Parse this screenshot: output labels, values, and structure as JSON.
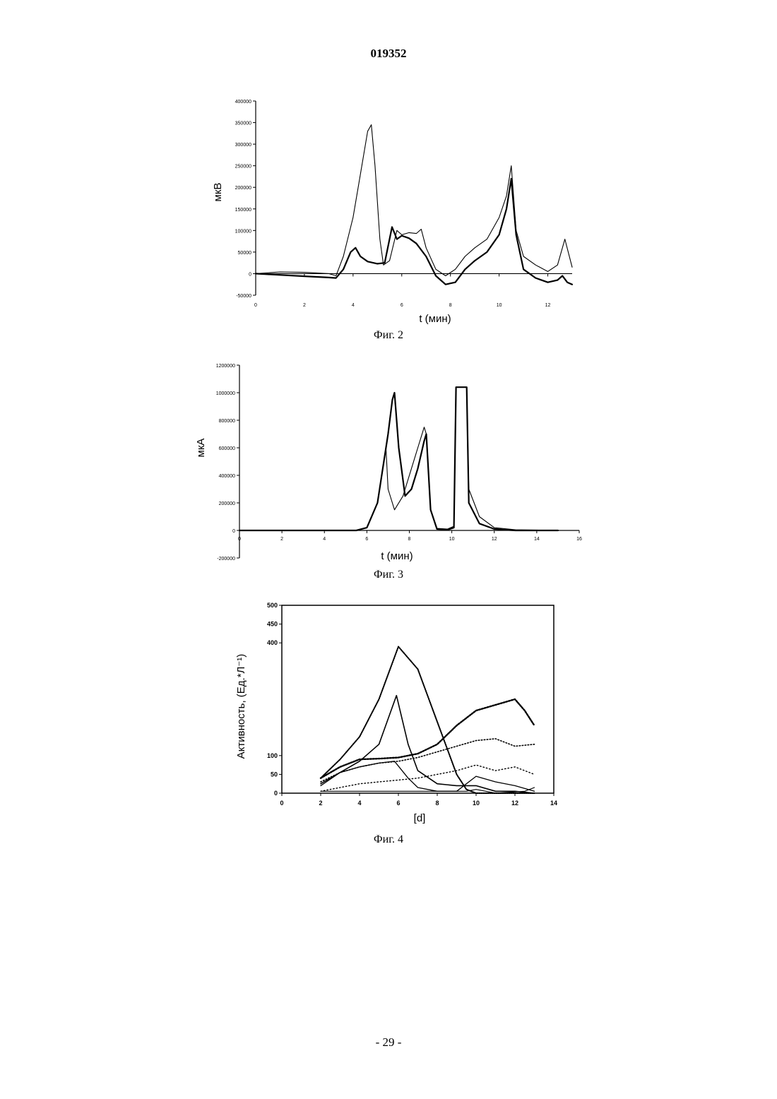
{
  "header": {
    "doc_number": "019352"
  },
  "footer": {
    "page_number": "- 29 -"
  },
  "chart_data": [
    {
      "type": "line",
      "caption": "Фиг. 2",
      "xlabel": "t (мин)",
      "ylabel": "мкВ",
      "xlim": [
        0,
        13
      ],
      "ylim": [
        -50000,
        400000
      ],
      "x_ticks": [
        0,
        2,
        4,
        6,
        8,
        10,
        12
      ],
      "x_tick_labels": [
        "0",
        "2",
        "4",
        "6",
        "8",
        "10",
        "12"
      ],
      "y_ticks": [
        -50000,
        0,
        50000,
        100000,
        150000,
        200000,
        250000,
        300000,
        350000,
        400000
      ],
      "y_tick_labels": [
        "-50000",
        "0",
        "50000",
        "100000",
        "150000",
        "200000",
        "250000",
        "300000",
        "350000",
        "400000"
      ],
      "series": [
        {
          "values": [
            [
              0,
              0
            ],
            [
              1,
              -3000
            ],
            [
              2,
              -6000
            ],
            [
              3,
              -9000
            ],
            [
              3.3,
              -10000
            ],
            [
              3.6,
              10000
            ],
            [
              3.9,
              50000
            ],
            [
              4.1,
              60000
            ],
            [
              4.3,
              40000
            ],
            [
              4.6,
              28000
            ],
            [
              5.0,
              23000
            ],
            [
              5.3,
              25000
            ],
            [
              5.6,
              108000
            ],
            [
              5.8,
              80000
            ],
            [
              6.0,
              88000
            ],
            [
              6.3,
              82000
            ],
            [
              6.6,
              70000
            ],
            [
              7.0,
              40000
            ],
            [
              7.4,
              -5000
            ],
            [
              7.8,
              -25000
            ],
            [
              8.2,
              -20000
            ],
            [
              8.6,
              10000
            ],
            [
              9.0,
              30000
            ],
            [
              9.5,
              50000
            ],
            [
              10.0,
              90000
            ],
            [
              10.3,
              150000
            ],
            [
              10.5,
              220000
            ],
            [
              10.7,
              90000
            ],
            [
              11.0,
              10000
            ],
            [
              11.5,
              -10000
            ],
            [
              12.0,
              -20000
            ],
            [
              12.4,
              -15000
            ],
            [
              12.6,
              -5000
            ],
            [
              12.8,
              -20000
            ],
            [
              13.0,
              -25000
            ]
          ]
        },
        {
          "values": [
            [
              0,
              0
            ],
            [
              1,
              4000
            ],
            [
              2,
              3000
            ],
            [
              3,
              0
            ],
            [
              3.3,
              -5000
            ],
            [
              3.6,
              40000
            ],
            [
              4.0,
              130000
            ],
            [
              4.3,
              230000
            ],
            [
              4.6,
              330000
            ],
            [
              4.75,
              345000
            ],
            [
              4.9,
              250000
            ],
            [
              5.1,
              80000
            ],
            [
              5.25,
              20000
            ],
            [
              5.5,
              30000
            ],
            [
              5.8,
              100000
            ],
            [
              6.0,
              90000
            ],
            [
              6.3,
              95000
            ],
            [
              6.6,
              93000
            ],
            [
              6.8,
              103000
            ],
            [
              7.0,
              60000
            ],
            [
              7.4,
              10000
            ],
            [
              7.8,
              -5000
            ],
            [
              8.2,
              10000
            ],
            [
              8.6,
              40000
            ],
            [
              9.0,
              60000
            ],
            [
              9.5,
              80000
            ],
            [
              10.0,
              130000
            ],
            [
              10.3,
              180000
            ],
            [
              10.5,
              250000
            ],
            [
              10.7,
              100000
            ],
            [
              11.0,
              40000
            ],
            [
              11.5,
              20000
            ],
            [
              12.0,
              5000
            ],
            [
              12.4,
              20000
            ],
            [
              12.7,
              80000
            ],
            [
              13.0,
              15000
            ]
          ]
        }
      ]
    },
    {
      "type": "line",
      "caption": "Фиг. 3",
      "xlabel": "t (мин)",
      "ylabel": "мкА",
      "xlim": [
        0,
        16
      ],
      "ylim": [
        -200000,
        1200000
      ],
      "x_ticks": [
        0,
        2,
        4,
        6,
        8,
        10,
        12,
        14,
        16
      ],
      "x_tick_labels": [
        "0",
        "2",
        "4",
        "6",
        "8",
        "10",
        "12",
        "14",
        "16"
      ],
      "y_ticks": [
        -200000,
        0,
        200000,
        400000,
        600000,
        800000,
        1000000,
        1200000
      ],
      "y_tick_labels": [
        "-200000",
        "0",
        "200000",
        "400000",
        "600000",
        "800000",
        "1000000",
        "1200000"
      ],
      "series": [
        {
          "values": [
            [
              0,
              0
            ],
            [
              5.5,
              0
            ],
            [
              6.0,
              20000
            ],
            [
              6.5,
              200000
            ],
            [
              7.0,
              700000
            ],
            [
              7.2,
              950000
            ],
            [
              7.3,
              1000000
            ],
            [
              7.5,
              600000
            ],
            [
              7.8,
              250000
            ],
            [
              8.1,
              300000
            ],
            [
              8.4,
              450000
            ],
            [
              8.7,
              650000
            ],
            [
              8.8,
              700000
            ],
            [
              9.0,
              150000
            ],
            [
              9.3,
              10000
            ],
            [
              9.8,
              5000
            ],
            [
              10.1,
              20000
            ],
            [
              10.2,
              1040000
            ],
            [
              10.7,
              1040000
            ],
            [
              10.8,
              200000
            ],
            [
              11.3,
              50000
            ],
            [
              12,
              10000
            ],
            [
              13,
              0
            ],
            [
              15,
              0
            ]
          ]
        },
        {
          "values": [
            [
              0,
              0
            ],
            [
              5.5,
              0
            ],
            [
              6.0,
              20000
            ],
            [
              6.5,
              200000
            ],
            [
              6.9,
              600000
            ],
            [
              7.0,
              300000
            ],
            [
              7.3,
              150000
            ],
            [
              7.7,
              250000
            ],
            [
              8.1,
              450000
            ],
            [
              8.4,
              600000
            ],
            [
              8.7,
              750000
            ],
            [
              8.8,
              700000
            ],
            [
              9.0,
              150000
            ],
            [
              9.3,
              15000
            ],
            [
              9.8,
              10000
            ],
            [
              10.1,
              30000
            ],
            [
              10.2,
              1040000
            ],
            [
              10.7,
              1040000
            ],
            [
              10.8,
              300000
            ],
            [
              11.3,
              100000
            ],
            [
              12,
              20000
            ],
            [
              13,
              5000
            ],
            [
              15,
              0
            ]
          ]
        }
      ]
    },
    {
      "type": "line",
      "caption": "Фиг. 4",
      "xlabel": "[d]",
      "ylabel": "Активность, (Ед.*Л⁻¹)",
      "xlim": [
        0,
        14
      ],
      "ylim": [
        0,
        500
      ],
      "x_ticks": [
        0,
        2,
        4,
        6,
        8,
        10,
        12,
        14
      ],
      "x_tick_labels": [
        "0",
        "2",
        "4",
        "6",
        "8",
        "10",
        "12",
        "14"
      ],
      "y_ticks": [
        0,
        50,
        100,
        400,
        450,
        500
      ],
      "y_tick_labels": [
        "0",
        "50",
        "100",
        "400",
        "450",
        "500"
      ],
      "series": [
        {
          "values": [
            [
              2,
              40
            ],
            [
              3,
              90
            ],
            [
              4,
              150
            ],
            [
              5,
              250
            ],
            [
              6,
              390
            ],
            [
              7,
              330
            ],
            [
              8,
              190
            ],
            [
              9,
              50
            ],
            [
              9.5,
              10
            ],
            [
              10,
              0
            ],
            [
              13,
              0
            ]
          ]
        },
        {
          "values": [
            [
              2,
              25
            ],
            [
              3,
              55
            ],
            [
              4,
              85
            ],
            [
              5,
              130
            ],
            [
              5.9,
              260
            ],
            [
              6.5,
              130
            ],
            [
              7,
              60
            ],
            [
              8,
              25
            ],
            [
              9,
              20
            ],
            [
              10,
              20
            ],
            [
              11,
              5
            ],
            [
              12,
              5
            ],
            [
              13,
              0
            ]
          ]
        },
        {
          "values": [
            [
              2,
              20
            ],
            [
              3,
              55
            ],
            [
              4,
              70
            ],
            [
              5,
              80
            ],
            [
              5.8,
              85
            ],
            [
              6.5,
              40
            ],
            [
              7,
              15
            ],
            [
              8,
              5
            ],
            [
              9,
              5
            ],
            [
              10,
              45
            ],
            [
              11,
              30
            ],
            [
              12,
              20
            ],
            [
              13,
              5
            ]
          ]
        },
        {
          "values": [
            [
              2,
              5
            ],
            [
              4,
              5
            ],
            [
              6,
              5
            ],
            [
              8,
              5
            ],
            [
              9.5,
              5
            ],
            [
              10,
              10
            ],
            [
              10.5,
              5
            ],
            [
              11,
              0
            ],
            [
              12.5,
              5
            ],
            [
              13,
              15
            ]
          ]
        },
        {
          "values": [
            [
              2,
              40
            ],
            [
              3,
              70
            ],
            [
              4,
              90
            ],
            [
              5,
              92
            ],
            [
              6,
              95
            ],
            [
              7,
              105
            ],
            [
              8,
              130
            ],
            [
              9,
              180
            ],
            [
              10,
              220
            ],
            [
              11,
              235
            ],
            [
              12,
              250
            ],
            [
              12.5,
              220
            ],
            [
              13,
              180
            ]
          ]
        },
        {
          "values": [
            [
              2,
              30
            ],
            [
              3,
              55
            ],
            [
              4,
              70
            ],
            [
              5,
              80
            ],
            [
              6,
              85
            ],
            [
              7,
              95
            ],
            [
              8,
              110
            ],
            [
              9,
              125
            ],
            [
              10,
              140
            ],
            [
              11,
              145
            ],
            [
              12,
              125
            ],
            [
              13,
              130
            ]
          ]
        },
        {
          "values": [
            [
              2,
              5
            ],
            [
              3,
              15
            ],
            [
              4,
              25
            ],
            [
              5,
              30
            ],
            [
              6,
              35
            ],
            [
              7,
              40
            ],
            [
              8,
              50
            ],
            [
              9,
              60
            ],
            [
              10,
              75
            ],
            [
              11,
              60
            ],
            [
              12,
              70
            ],
            [
              13,
              50
            ]
          ]
        }
      ]
    }
  ]
}
